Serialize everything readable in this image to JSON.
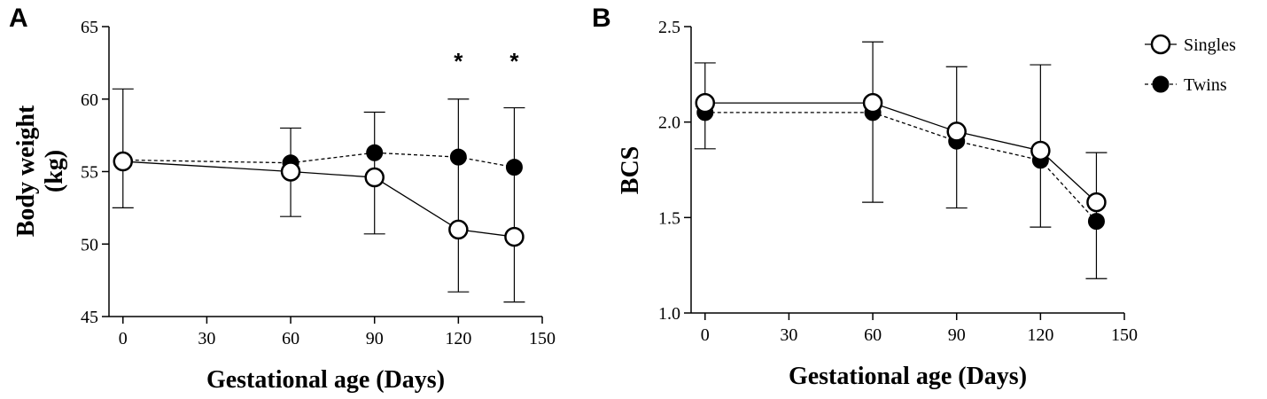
{
  "chart_data": [
    {
      "panel": "A",
      "type": "line",
      "xlabel": "Gestational age (Days)",
      "ylabel_line1": "Body weight",
      "ylabel_line2": "(kg)",
      "xlim": [
        -5,
        150
      ],
      "ylim": [
        45,
        65
      ],
      "xticks": [
        0,
        30,
        60,
        90,
        120,
        150
      ],
      "yticks": [
        45,
        50,
        55,
        60,
        65
      ],
      "annotations": [
        {
          "x": 120,
          "text": "*"
        },
        {
          "x": 140,
          "text": "*"
        }
      ],
      "series": [
        {
          "name": "Singles",
          "x": [
            0,
            60,
            90,
            120,
            140
          ],
          "y": [
            55.7,
            55.0,
            54.6,
            51.0,
            50.5
          ],
          "err_low": [
            52.5,
            51.9,
            50.7,
            46.7,
            46.0
          ],
          "err_high": [
            60.7,
            58.0,
            59.1,
            60.0,
            59.4
          ],
          "marker": "open-circle",
          "line": "solid"
        },
        {
          "name": "Twins",
          "x": [
            0,
            60,
            90,
            120,
            140
          ],
          "y": [
            55.8,
            55.6,
            56.3,
            56.0,
            55.3
          ],
          "marker": "filled-circle",
          "line": "dashed"
        }
      ]
    },
    {
      "panel": "B",
      "type": "line",
      "xlabel": "Gestational age (Days)",
      "ylabel_line1": "BCS",
      "xlim": [
        -5,
        150
      ],
      "ylim": [
        1.0,
        2.5
      ],
      "xticks": [
        0,
        30,
        60,
        90,
        120,
        150
      ],
      "yticks": [
        1.0,
        1.5,
        2.0,
        2.5
      ],
      "legend": {
        "position": "top-right",
        "entries": [
          "Singles",
          "Twins"
        ]
      },
      "series": [
        {
          "name": "Singles",
          "x": [
            0,
            60,
            90,
            120,
            140
          ],
          "y": [
            2.1,
            2.1,
            1.95,
            1.85,
            1.58
          ],
          "err_low": [
            1.86,
            1.58,
            1.55,
            1.45,
            1.18
          ],
          "err_high": [
            2.31,
            2.42,
            2.29,
            2.3,
            1.84
          ],
          "marker": "open-circle",
          "line": "solid"
        },
        {
          "name": "Twins",
          "x": [
            0,
            60,
            90,
            120,
            140
          ],
          "y": [
            2.05,
            2.05,
            1.9,
            1.8,
            1.48
          ],
          "marker": "filled-circle",
          "line": "dashed"
        }
      ]
    }
  ]
}
